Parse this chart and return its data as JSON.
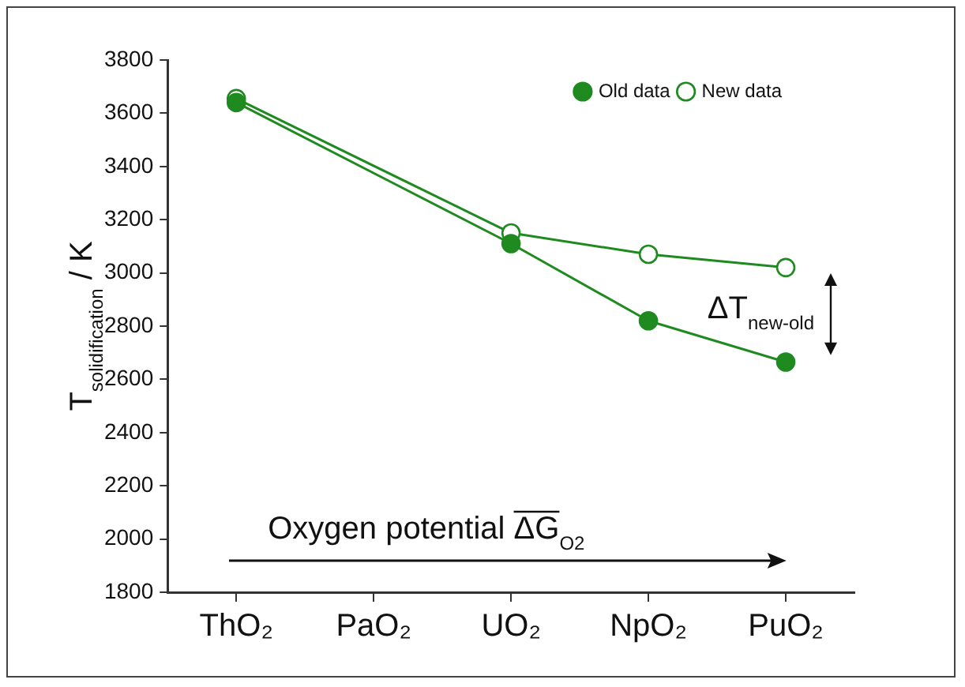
{
  "chart_data": {
    "type": "line",
    "ylabel": "T$_{solidification}$ / K",
    "categories": [
      "ThO₂",
      "PaO₂",
      "UO₂",
      "NpO₂",
      "PuO₂"
    ],
    "series": [
      {
        "name": "Old data",
        "color": "#1f8a1f",
        "values": [
          3640,
          null,
          3110,
          2820,
          2665
        ]
      },
      {
        "name": "New data",
        "color": "#1f8a1f",
        "values": [
          3655,
          null,
          3150,
          3070,
          3020
        ]
      }
    ],
    "ylim": [
      1800,
      3800
    ],
    "yticks": [
      1800,
      2000,
      2200,
      2400,
      2600,
      2800,
      3000,
      3200,
      3400,
      3600,
      3800
    ],
    "annotations": [
      "ΔT$_{new-old}$",
      "Oxygen potential ΔG$_{O2}$"
    ],
    "legend": "top right",
    "marker": "circle",
    "line_style": "solid",
    "grid": false
  }
}
